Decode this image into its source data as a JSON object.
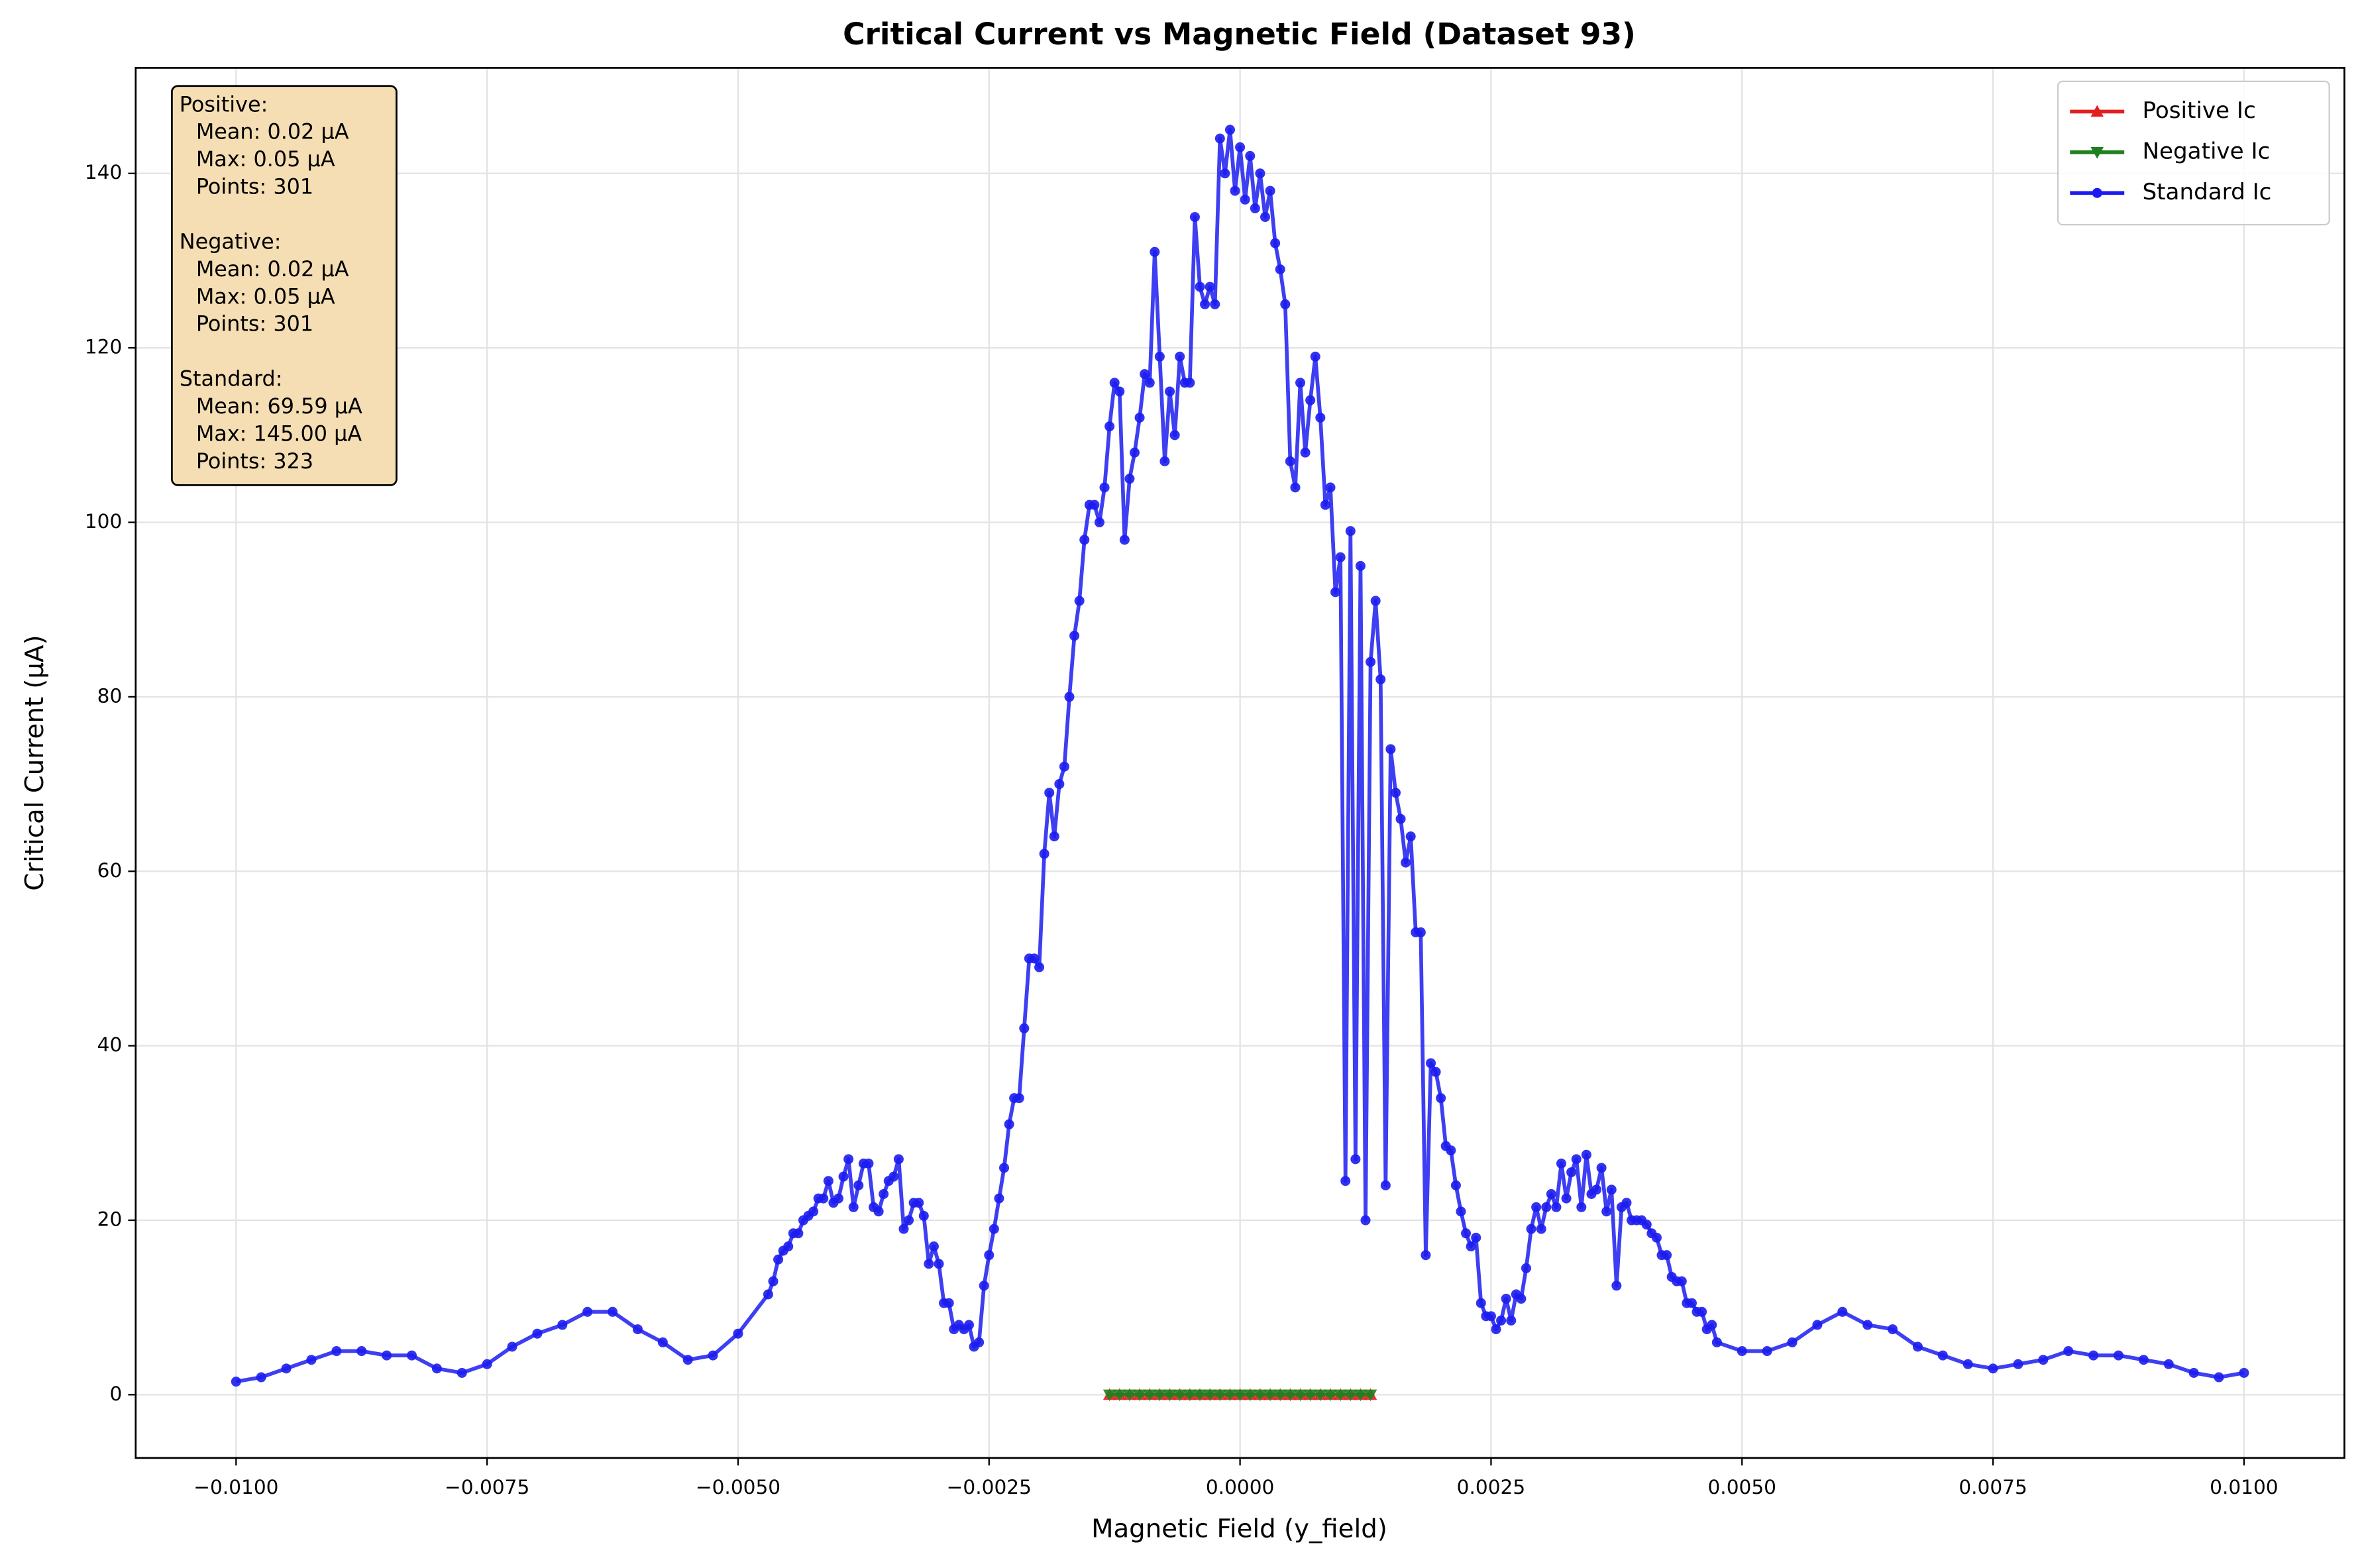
{
  "chart_data": {
    "type": "line",
    "title": "Critical Current vs Magnetic Field (Dataset 93)",
    "xlabel": "Magnetic Field (y_field)",
    "ylabel": "Critical Current (µA)",
    "xlim": [
      -0.011,
      0.011
    ],
    "ylim": [
      -7.25,
      152.1
    ],
    "xticks": [
      {
        "value": -0.01,
        "label": "−0.0100"
      },
      {
        "value": -0.0075,
        "label": "−0.0075"
      },
      {
        "value": -0.005,
        "label": "−0.0050"
      },
      {
        "value": -0.0025,
        "label": "−0.0025"
      },
      {
        "value": 0,
        "label": "0.0000"
      },
      {
        "value": 0.0025,
        "label": "0.0025"
      },
      {
        "value": 0.005,
        "label": "0.0050"
      },
      {
        "value": 0.0075,
        "label": "0.0075"
      },
      {
        "value": 0.01,
        "label": "0.0100"
      }
    ],
    "yticks": [
      0,
      20,
      40,
      60,
      80,
      100,
      120,
      140
    ],
    "grid": true,
    "legend": "upper right",
    "stats": [
      {
        "title": "Positive:",
        "lines": [
          "Mean: 0.02 µA",
          "Max: 0.05 µA",
          "Points: 301"
        ]
      },
      {
        "title": "Negative:",
        "lines": [
          "Mean: 0.02 µA",
          "Max: 0.05 µA",
          "Points: 301"
        ]
      },
      {
        "title": "Standard:",
        "lines": [
          "Mean: 69.59 µA",
          "Max: 145.00 µA",
          "Points: 323"
        ]
      }
    ],
    "series": [
      {
        "name": "Positive Ic",
        "color": "#e02020",
        "marker": "triangle-up",
        "x": [
          -0.0013,
          -0.0012,
          -0.0011,
          -0.001,
          -0.0009,
          -0.0008,
          -0.0007,
          -0.0006,
          -0.0005,
          -0.0004,
          -0.0003,
          -0.0002,
          -0.0001,
          0,
          0.0001,
          0.0002,
          0.0003,
          0.0004,
          0.0005,
          0.0006,
          0.0007,
          0.0008,
          0.0009,
          0.001,
          0.0011,
          0.0012,
          0.0013
        ],
        "values": [
          0,
          0,
          0,
          0,
          0,
          0,
          0,
          0,
          0,
          0,
          0,
          0,
          0,
          0,
          0,
          0,
          0,
          0,
          0,
          0,
          0,
          0,
          0,
          0,
          0,
          0,
          0
        ]
      },
      {
        "name": "Negative Ic",
        "color": "#208020",
        "marker": "triangle-down",
        "x": [
          -0.0013,
          -0.0012,
          -0.0011,
          -0.001,
          -0.0009,
          -0.0008,
          -0.0007,
          -0.0006,
          -0.0005,
          -0.0004,
          -0.0003,
          -0.0002,
          -0.0001,
          0,
          0.0001,
          0.0002,
          0.0003,
          0.0004,
          0.0005,
          0.0006,
          0.0007,
          0.0008,
          0.0009,
          0.001,
          0.0011,
          0.0012,
          0.0013
        ],
        "values": [
          0,
          0,
          0,
          0,
          0,
          0,
          0,
          0,
          0,
          0,
          0,
          0,
          0,
          0,
          0,
          0,
          0,
          0,
          0,
          0,
          0,
          0,
          0,
          0,
          0,
          0,
          0
        ]
      },
      {
        "name": "Standard Ic",
        "color": "#1c1cf0",
        "marker": "circle",
        "x": [
          -0.01,
          -0.00975,
          -0.0095,
          -0.00925,
          -0.009,
          -0.00875,
          -0.0085,
          -0.00825,
          -0.008,
          -0.00775,
          -0.0075,
          -0.00725,
          -0.007,
          -0.00675,
          -0.0065,
          -0.00625,
          -0.006,
          -0.00575,
          -0.0055,
          -0.00525,
          -0.005,
          -0.0047,
          -0.00465,
          -0.0046,
          -0.00455,
          -0.0045,
          -0.00445,
          -0.0044,
          -0.00435,
          -0.0043,
          -0.00425,
          -0.0042,
          -0.00415,
          -0.0041,
          -0.00405,
          -0.004,
          -0.00395,
          -0.0039,
          -0.00385,
          -0.0038,
          -0.00375,
          -0.0037,
          -0.00365,
          -0.0036,
          -0.00355,
          -0.0035,
          -0.00345,
          -0.0034,
          -0.00335,
          -0.0033,
          -0.00325,
          -0.0032,
          -0.00315,
          -0.0031,
          -0.00305,
          -0.003,
          -0.00295,
          -0.0029,
          -0.00285,
          -0.0028,
          -0.00275,
          -0.0027,
          -0.00265,
          -0.0026,
          -0.00255,
          -0.0025,
          -0.00245,
          -0.0024,
          -0.00235,
          -0.0023,
          -0.00225,
          -0.0022,
          -0.00215,
          -0.0021,
          -0.00205,
          -0.002,
          -0.00195,
          -0.0019,
          -0.00185,
          -0.0018,
          -0.00175,
          -0.0017,
          -0.00165,
          -0.0016,
          -0.00155,
          -0.0015,
          -0.00145,
          -0.0014,
          -0.00135,
          -0.0013,
          -0.00125,
          -0.0012,
          -0.00115,
          -0.0011,
          -0.00105,
          -0.001,
          -0.00095,
          -0.0009,
          -0.00085,
          -0.0008,
          -0.00075,
          -0.0007,
          -0.00065,
          -0.0006,
          -0.00055,
          -0.0005,
          -0.00045,
          -0.0004,
          -0.00035,
          -0.0003,
          -0.00025,
          -0.0002,
          -0.00015,
          -0.0001,
          -5e-05,
          0,
          5e-05,
          0.0001,
          0.00015,
          0.0002,
          0.00025,
          0.0003,
          0.00035,
          0.0004,
          0.00045,
          0.0005,
          0.00055,
          0.0006,
          0.00065,
          0.0007,
          0.00075,
          0.0008,
          0.00085,
          0.0009,
          0.00095,
          0.001,
          0.00105,
          0.0011,
          0.00115,
          0.0012,
          0.00125,
          0.0013,
          0.00135,
          0.0014,
          0.00145,
          0.0015,
          0.00155,
          0.0016,
          0.00165,
          0.0017,
          0.00175,
          0.0018,
          0.00185,
          0.0019,
          0.00195,
          0.002,
          0.00205,
          0.0021,
          0.00215,
          0.0022,
          0.00225,
          0.0023,
          0.00235,
          0.0024,
          0.00245,
          0.0025,
          0.00255,
          0.0026,
          0.00265,
          0.0027,
          0.00275,
          0.0028,
          0.00285,
          0.0029,
          0.00295,
          0.003,
          0.00305,
          0.0031,
          0.00315,
          0.0032,
          0.00325,
          0.0033,
          0.00335,
          0.0034,
          0.00345,
          0.0035,
          0.00355,
          0.0036,
          0.00365,
          0.0037,
          0.00375,
          0.0038,
          0.00385,
          0.0039,
          0.00395,
          0.004,
          0.00405,
          0.0041,
          0.00415,
          0.0042,
          0.00425,
          0.0043,
          0.00435,
          0.0044,
          0.00445,
          0.0045,
          0.00455,
          0.0046,
          0.00465,
          0.0047,
          0.00475,
          0.005,
          0.00525,
          0.0055,
          0.00575,
          0.006,
          0.00625,
          0.0065,
          0.00675,
          0.007,
          0.00725,
          0.0075,
          0.00775,
          0.008,
          0.00825,
          0.0085,
          0.00875,
          0.009,
          0.00925,
          0.0095,
          0.00975,
          0.01
        ],
        "values": [
          1.5,
          2,
          3,
          4,
          5,
          5,
          4.5,
          4.5,
          3,
          2.5,
          3.5,
          5.5,
          7,
          8,
          9.5,
          9.5,
          7.5,
          6,
          4,
          4.5,
          7,
          11.5,
          13,
          15.5,
          16.5,
          17,
          18.5,
          18.5,
          20,
          20.5,
          21,
          22.5,
          22.5,
          24.5,
          22,
          22.5,
          25,
          27,
          21.5,
          24,
          26.5,
          26.5,
          21.5,
          21,
          23,
          24.5,
          25,
          27,
          19,
          20,
          22,
          22,
          20.5,
          15,
          17,
          15,
          10.5,
          10.5,
          7.5,
          8,
          7.5,
          8,
          5.5,
          6,
          12.5,
          16,
          19,
          22.5,
          26,
          31,
          34,
          34,
          42,
          50,
          50,
          49,
          62,
          69,
          64,
          70,
          72,
          80,
          87,
          91,
          98,
          102,
          102,
          100,
          104,
          111,
          116,
          115,
          98,
          105,
          108,
          112,
          117,
          116,
          131,
          119,
          107,
          115,
          110,
          119,
          116,
          116,
          135,
          127,
          125,
          127,
          125,
          144,
          140,
          145,
          138,
          143,
          137,
          142,
          136,
          140,
          135,
          138,
          132,
          129,
          125,
          107,
          104,
          116,
          108,
          114,
          119,
          112,
          102,
          104,
          92,
          96,
          24.5,
          99,
          27,
          95,
          20,
          84,
          91,
          82,
          24,
          74,
          69,
          66,
          61,
          64,
          53,
          53,
          16,
          38,
          37,
          34,
          28.5,
          28,
          24,
          21,
          18.5,
          17,
          18,
          10.5,
          9,
          9,
          7.5,
          8.5,
          11,
          8.5,
          11.5,
          11,
          14.5,
          19,
          21.5,
          19,
          21.5,
          23,
          21.5,
          26.5,
          22.5,
          25.5,
          27,
          21.5,
          27.5,
          23,
          23.5,
          26,
          21,
          23.5,
          12.5,
          21.5,
          22,
          20,
          20,
          20,
          19.5,
          18.5,
          18,
          16,
          16,
          13.5,
          13,
          13,
          10.5,
          10.5,
          9.5,
          9.5,
          7.5,
          8,
          6,
          5,
          5,
          6,
          8,
          9.5,
          8,
          7.5,
          5.5,
          4.5,
          3.5,
          3,
          3.5,
          4,
          5,
          4.5,
          4.5,
          4,
          3.5,
          2.5,
          2,
          2.5
        ]
      }
    ]
  }
}
